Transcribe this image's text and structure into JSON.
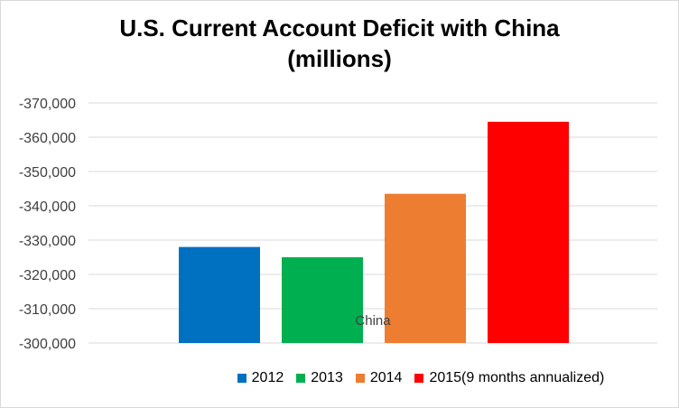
{
  "chart_data": {
    "type": "bar",
    "title": "U.S. Current Account Deficit with China (millions)",
    "title_lines": [
      "U.S. Current Account Deficit with China",
      "(millions)"
    ],
    "category_label": "China",
    "ylim": [
      -300000,
      -370000
    ],
    "yticks": [
      -370000,
      -360000,
      -350000,
      -340000,
      -330000,
      -320000,
      -310000,
      -300000
    ],
    "ytick_labels": [
      "-370,000",
      "-360,000",
      "-350,000",
      "-340,000",
      "-330,000",
      "-320,000",
      "-310,000",
      "-300,000"
    ],
    "grid": true,
    "legend_position": "bottom",
    "series": [
      {
        "name": "2012",
        "value": -328000,
        "color": "#0070c0"
      },
      {
        "name": "2013",
        "value": -325000,
        "color": "#00b050"
      },
      {
        "name": "2014",
        "value": -343500,
        "color": "#ed7d31"
      },
      {
        "name": "2015(9 months annualized)",
        "value": -364500,
        "color": "#ff0000"
      }
    ]
  }
}
